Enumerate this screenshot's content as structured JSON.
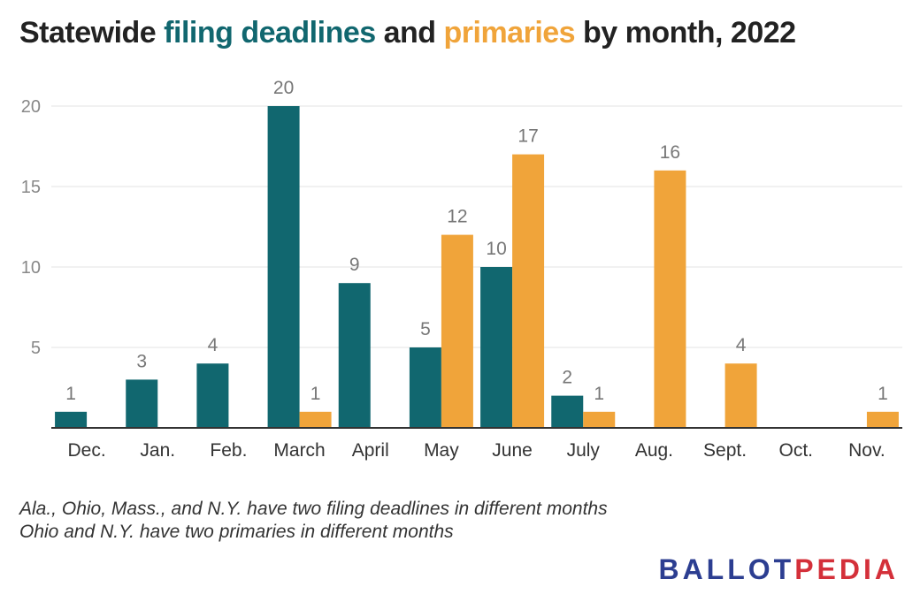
{
  "title": {
    "part1": "Statewide ",
    "part2": "filing deadlines",
    "part3": " and ",
    "part4": "primaries",
    "part5": " by month, 2022"
  },
  "notes": [
    "Ala., Ohio, Mass., and N.Y. have two filing deadlines in different months",
    "Ohio and N.Y. have two primaries in different months"
  ],
  "brand": {
    "part1": "BALLOT",
    "part2": "PEDIA"
  },
  "colors": {
    "filing": "#11676f",
    "primaries": "#f0a43a",
    "grid": "#e3e3e3",
    "axis": "#333333",
    "label": "#777777"
  },
  "chart_data": {
    "type": "bar",
    "title": "Statewide filing deadlines and primaries by month, 2022",
    "categories": [
      "Dec.",
      "Jan.",
      "Feb.",
      "March",
      "April",
      "May",
      "June",
      "July",
      "Aug.",
      "Sept.",
      "Oct.",
      "Nov."
    ],
    "series": [
      {
        "name": "filing deadlines",
        "values": [
          1,
          3,
          4,
          20,
          9,
          5,
          10,
          2,
          0,
          0,
          0,
          0
        ]
      },
      {
        "name": "primaries",
        "values": [
          0,
          0,
          0,
          1,
          0,
          12,
          17,
          1,
          16,
          4,
          0,
          1
        ]
      }
    ],
    "yticks": [
      5,
      10,
      15,
      20
    ],
    "ylim": [
      0,
      20
    ],
    "xlabel": "",
    "ylabel": "",
    "grid": true
  }
}
